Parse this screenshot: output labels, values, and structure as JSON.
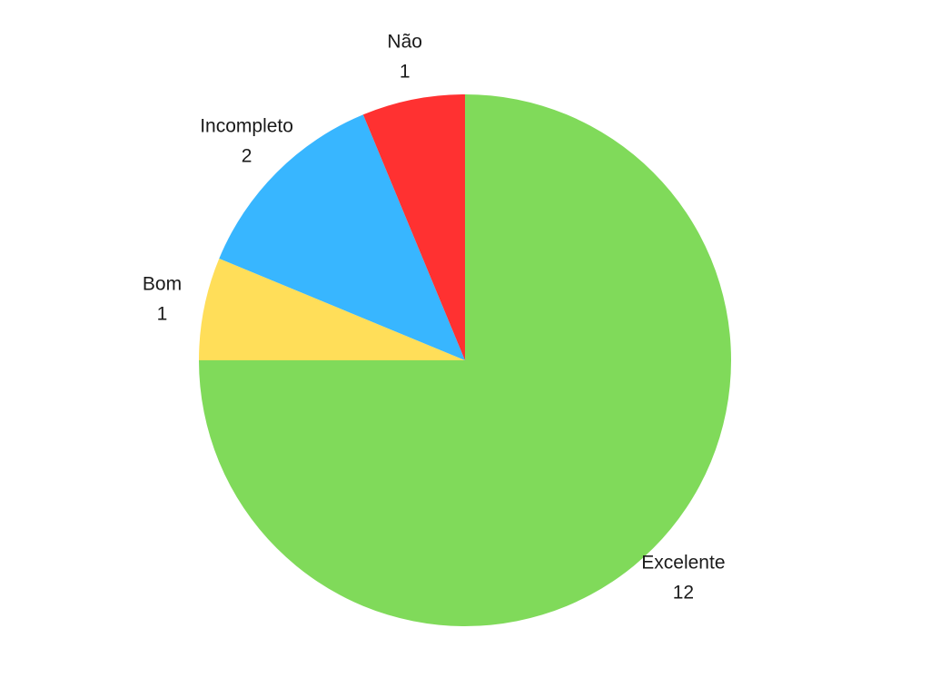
{
  "chart_data": {
    "type": "pie",
    "title": "",
    "slices": [
      {
        "label": "Excelente",
        "value": 12,
        "color": "#80DA5A"
      },
      {
        "label": "Bom",
        "value": 1,
        "color": "#FFDE59"
      },
      {
        "label": "Incompleto",
        "value": 2,
        "color": "#38B6FF"
      },
      {
        "label": "Não",
        "value": 1,
        "color": "#FF3131"
      }
    ],
    "start_angle": "12 o'clock",
    "direction": "clockwise",
    "legend": "none",
    "data_labels": "category name with value, outside each slice"
  }
}
